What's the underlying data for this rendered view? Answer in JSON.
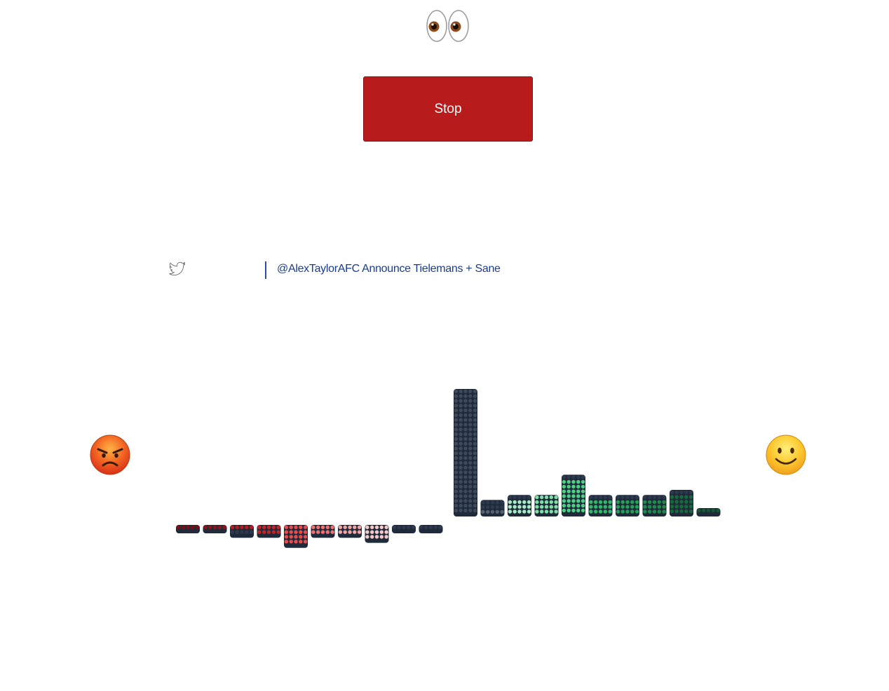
{
  "header": {
    "eyes_icon": "eyes-emoji-icon"
  },
  "controls": {
    "stop_label": "Stop",
    "stop_color": "#b71b1b"
  },
  "tweet": {
    "icon": "twitter-bird-icon",
    "text": "@AlexTaylorAFC Announce Tielemans + Sane"
  },
  "sentiment": {
    "negative_icon": "angry-face-icon",
    "positive_icon": "smiling-face-icon"
  },
  "chart_data": {
    "type": "bar",
    "title": "",
    "xlabel": "",
    "ylabel": "",
    "grid": false,
    "negative": {
      "description": "sentiment bins below baseline, most negative at left",
      "values": [
        1,
        1,
        2,
        2,
        4,
        2,
        2,
        3,
        1,
        1
      ],
      "fill_levels": [
        0.5,
        0.6,
        0.7,
        0.8,
        1.0,
        1.0,
        1.0,
        0.9,
        0.4,
        0.2
      ],
      "colors": [
        "#7a0f12",
        "#8c1418",
        "#b51c20",
        "#c42428",
        "#e94b4b",
        "#f07070",
        "#f2a3a3",
        "#f6c9c9",
        "#5a6575",
        "#3c4656"
      ]
    },
    "positive": {
      "description": "sentiment bins above baseline, neutral at left, most positive at right",
      "values": [
        25,
        3,
        4,
        4,
        8,
        4,
        4,
        4,
        5,
        1
      ],
      "fill_levels": [
        1.0,
        0.4,
        0.7,
        0.9,
        0.9,
        0.8,
        0.8,
        0.7,
        0.7,
        0.6
      ],
      "colors": [
        "#3d4a5c",
        "#56616f",
        "#a6ecc2",
        "#7fe0a6",
        "#4cd183",
        "#2fb866",
        "#24a056",
        "#1d8a48",
        "#16693a",
        "#125a32"
      ]
    },
    "empty_color": "#1f2a3a"
  }
}
